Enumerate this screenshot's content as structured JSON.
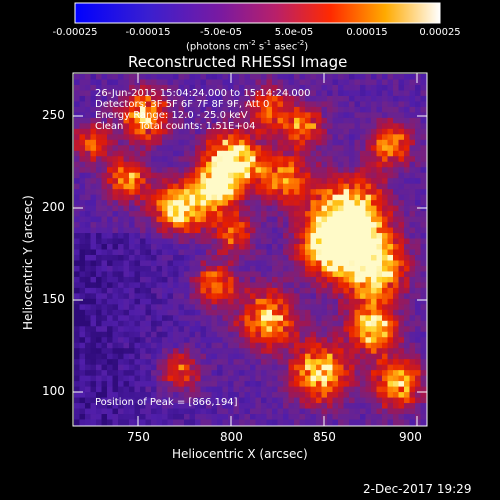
{
  "colorbar": {
    "ticks": [
      "-0.00025",
      "-0.00015",
      "-5.0e-05",
      "5.0e-05",
      "0.00015",
      "0.00025"
    ],
    "units": {
      "prefix": "(photons cm",
      "exp1": "-2",
      "mid": " s",
      "exp2": "-1",
      "mid2": " asec",
      "exp3": "-2",
      "suffix": ")"
    }
  },
  "image": {
    "title": "Reconstructed RHESSI Image",
    "time_range": "26-Jun-2015 15:04:24.000 to 15:14:24.000",
    "detectors": "Detectors: 3F 5F 6F 7F 8F 9F, Att 0",
    "energy_range": "Energy Range: 12.0 - 25.0 keV",
    "clean_line": "Clean     Total counts: 1.51E+04",
    "peak_position": "Position of Peak = [866,194]"
  },
  "chart_data": {
    "type": "heatmap",
    "title": "Reconstructed RHESSI Image",
    "xlabel": "Heliocentric X (arcsec)",
    "ylabel": "Heliocentric Y (arcsec)",
    "xlim": [
      715,
      905
    ],
    "ylim": [
      83,
      270
    ],
    "xticks": [
      "750",
      "800",
      "850",
      "900"
    ],
    "yticks": [
      "100",
      "150",
      "200",
      "250"
    ],
    "colorbar_range": [
      -0.00025,
      0.00025
    ],
    "peak": [
      866,
      194
    ]
  },
  "footer": {
    "date": "2-Dec-2017 19:29"
  }
}
